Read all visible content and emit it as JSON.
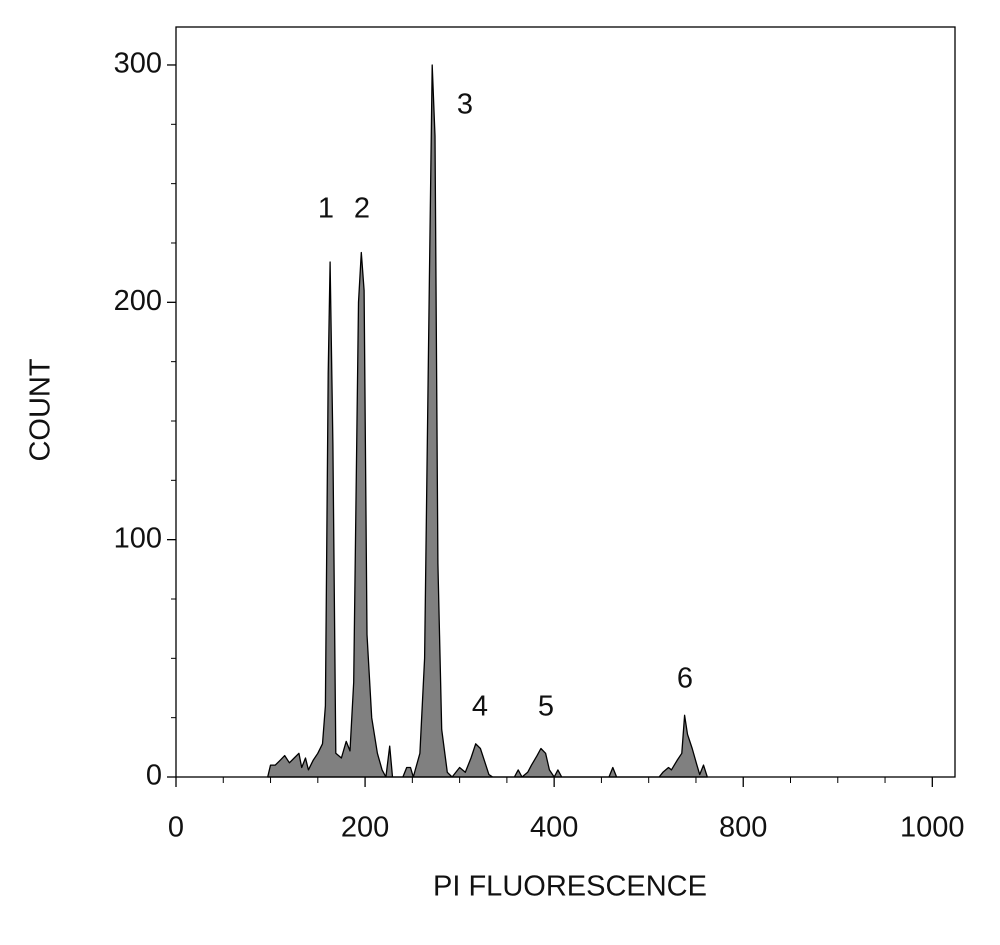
{
  "chart_data": {
    "type": "area",
    "xlabel": "PI FLUORESCENCE",
    "ylabel": "COUNT",
    "x": [
      97,
      100,
      105,
      110,
      115,
      120,
      125,
      130,
      133,
      137,
      140,
      145,
      150,
      155,
      158,
      161,
      163,
      166,
      169,
      175,
      180,
      184,
      188,
      193,
      196,
      199,
      202,
      207,
      213,
      218,
      222,
      226,
      229,
      240,
      244,
      248,
      251,
      258,
      263,
      268,
      271,
      274,
      277,
      281,
      287,
      292,
      300,
      306,
      312,
      317,
      322,
      327,
      331,
      335,
      358,
      362,
      366,
      372,
      376,
      382,
      386,
      391,
      395,
      400,
      404,
      408,
      458,
      462,
      466,
      511,
      515,
      521,
      524,
      530,
      535,
      538,
      541,
      546,
      551,
      554,
      558,
      562
    ],
    "values": [
      0,
      5,
      5,
      7,
      9,
      6,
      8,
      10,
      4,
      8,
      3,
      7,
      10,
      14,
      30,
      170,
      217,
      140,
      10,
      8,
      15,
      11,
      40,
      200,
      221,
      205,
      60,
      25,
      10,
      3,
      0,
      13,
      0,
      0,
      4,
      4,
      0,
      10,
      50,
      210,
      300,
      270,
      90,
      20,
      2,
      0,
      4,
      2,
      8,
      14,
      12,
      6,
      1,
      0,
      0,
      3,
      0,
      2,
      5,
      9,
      12,
      10,
      3,
      0,
      3,
      0,
      0,
      4,
      0,
      0,
      2,
      4,
      3,
      7,
      10,
      26,
      18,
      12,
      5,
      1,
      5,
      0
    ],
    "color": "#808080",
    "annotations": [
      "1",
      "2",
      "3",
      "4",
      "5",
      "6"
    ],
    "xlim": [
      0,
      824
    ],
    "xticks": [
      0,
      200,
      400,
      {
        "value": 600,
        "label": "800"
      },
      {
        "value": 800,
        "label": "1000"
      }
    ],
    "ylim": [
      0,
      316
    ],
    "yticks": [
      0,
      100,
      200,
      300
    ]
  }
}
